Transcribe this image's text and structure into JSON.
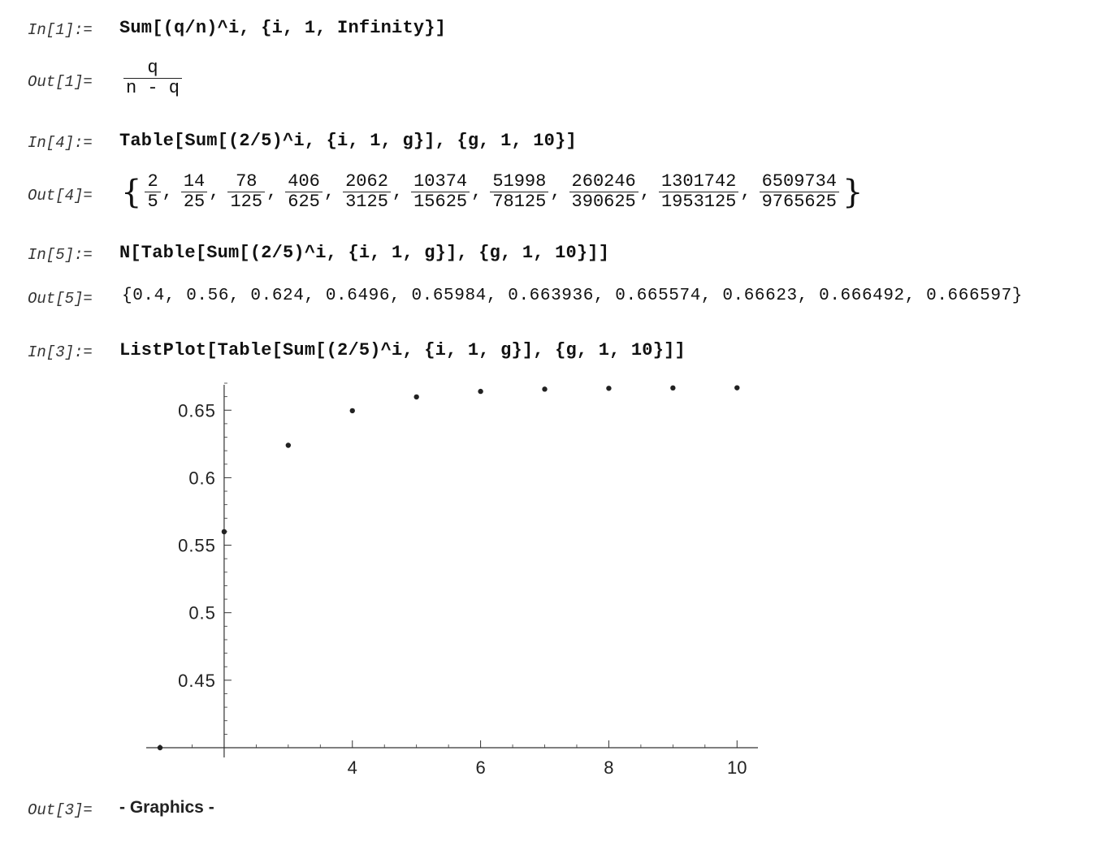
{
  "cells": {
    "in1": {
      "label": "In[1]:=",
      "code": "Sum[(q/n)^i, {i, 1, Infinity}]"
    },
    "out1": {
      "label": "Out[1]=",
      "num": "q",
      "den": "n - q"
    },
    "in4": {
      "label": "In[4]:=",
      "code": "Table[Sum[(2/5)^i, {i, 1, g}], {g, 1, 10}]"
    },
    "out4": {
      "label": "Out[4]=",
      "open": "{",
      "close": "}",
      "fractions": [
        {
          "num": "2",
          "den": "5"
        },
        {
          "num": "14",
          "den": "25"
        },
        {
          "num": "78",
          "den": "125"
        },
        {
          "num": "406",
          "den": "625"
        },
        {
          "num": "2062",
          "den": "3125"
        },
        {
          "num": "10374",
          "den": "15625"
        },
        {
          "num": "51998",
          "den": "78125"
        },
        {
          "num": "260246",
          "den": "390625"
        },
        {
          "num": "1301742",
          "den": "1953125"
        },
        {
          "num": "6509734",
          "den": "9765625"
        }
      ]
    },
    "in5": {
      "label": "In[5]:=",
      "code": "N[Table[Sum[(2/5)^i, {i, 1, g}], {g, 1, 10}]]"
    },
    "out5": {
      "label": "Out[5]=",
      "text": "{0.4, 0.56, 0.624, 0.6496, 0.65984, 0.663936, 0.665574, 0.66623, 0.666492, 0.666597}"
    },
    "in3": {
      "label": "In[3]:=",
      "code": "ListPlot[Table[Sum[(2/5)^i, {i, 1, g}], {g, 1, 10}]]"
    },
    "out3": {
      "label": "Out[3]=",
      "text": "- Graphics -"
    }
  },
  "chart_data": {
    "type": "scatter",
    "title": "",
    "xlabel": "",
    "ylabel": "",
    "x": [
      1,
      2,
      3,
      4,
      5,
      6,
      7,
      8,
      9,
      10
    ],
    "y": [
      0.4,
      0.56,
      0.624,
      0.6496,
      0.65984,
      0.663936,
      0.665574,
      0.66623,
      0.666492,
      0.666597
    ],
    "xlim": [
      1,
      10.25
    ],
    "ylim": [
      0.4,
      0.67
    ],
    "x_axis_at_y": 0.4,
    "y_axis_at_x": 2,
    "x_ticks": [
      4,
      6,
      8,
      10
    ],
    "x_tick_labels": [
      "4",
      "6",
      "8",
      "10"
    ],
    "y_ticks": [
      0.45,
      0.5,
      0.55,
      0.6,
      0.65
    ],
    "y_tick_labels": [
      "0.45",
      "0.5",
      "0.55",
      "0.6",
      "0.65"
    ],
    "grid": false,
    "point_color": "#222222"
  }
}
